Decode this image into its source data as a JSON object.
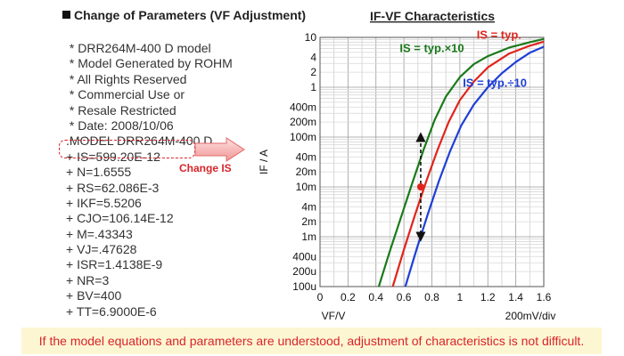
{
  "heading": "Change of Parameters (VF Adjustment)",
  "model_lines": [
    " * DRR264M-400 D model",
    " * Model Generated by ROHM",
    " * All Rights Reserved",
    " * Commercial Use or",
    " * Resale Restricted",
    " * Date: 2008/10/06",
    ".MODEL DRR264M-400 D",
    "+ IS=599.20E-12",
    "+ N=1.6555",
    "+ RS=62.086E-3",
    "+ IKF=5.5206",
    "+ CJO=106.14E-12",
    "+ M=.43343",
    "+ VJ=.47628",
    "+ ISR=1.4138E-9",
    "+ NR=3",
    "+ BV=400",
    "+ TT=6.9000E-6"
  ],
  "change_label": "Change IS",
  "footer_text": "If the model equations and parameters are understood, adjustment of characteristics is not difficult.",
  "colors": {
    "accent_red": "#d9242b",
    "series_green": "#1a7a1a",
    "series_red": "#e0241c",
    "series_blue": "#1f3fd6",
    "footer_bg": "#fdf6d2"
  },
  "chart_data": {
    "type": "line",
    "title": "IF-VF Characteristics",
    "xlabel": "VF/V",
    "ylabel": "IF / A",
    "x_scale_note": "200mV/div",
    "y_scale": "log",
    "xlim": [
      0,
      1.6
    ],
    "ylim": [
      0.0001,
      10
    ],
    "x_ticks": [
      "0",
      "0.2",
      "0.4",
      "0.6",
      "0.8",
      "1",
      "1.2",
      "1.4",
      "1.6"
    ],
    "y_ticks": [
      {
        "value": 10,
        "label": "10"
      },
      {
        "value": 4,
        "label": "4"
      },
      {
        "value": 2,
        "label": "2"
      },
      {
        "value": 1,
        "label": "1"
      },
      {
        "value": 0.4,
        "label": "400m"
      },
      {
        "value": 0.2,
        "label": "200m"
      },
      {
        "value": 0.1,
        "label": "100m"
      },
      {
        "value": 0.04,
        "label": "40m"
      },
      {
        "value": 0.02,
        "label": "20m"
      },
      {
        "value": 0.01,
        "label": "10m"
      },
      {
        "value": 0.004,
        "label": "4m"
      },
      {
        "value": 0.002,
        "label": "2m"
      },
      {
        "value": 0.001,
        "label": "1m"
      },
      {
        "value": 0.0004,
        "label": "400u"
      },
      {
        "value": 0.0002,
        "label": "200u"
      },
      {
        "value": 0.0001,
        "label": "100u"
      }
    ],
    "grid": true,
    "series": [
      {
        "name": "IS = typ.×10",
        "color": "#1a7a1a",
        "x": [
          0.42,
          0.5,
          0.58,
          0.66,
          0.74,
          0.82,
          0.9,
          1.0,
          1.1,
          1.2,
          1.35,
          1.5,
          1.6
        ],
        "y": [
          0.0001,
          0.00052,
          0.0025,
          0.012,
          0.055,
          0.22,
          0.65,
          1.6,
          2.9,
          4.2,
          6.2,
          8.0,
          9.3
        ]
      },
      {
        "name": "IS = typ.",
        "color": "#e0241c",
        "x": [
          0.52,
          0.6,
          0.68,
          0.76,
          0.84,
          0.92,
          1.0,
          1.1,
          1.2,
          1.35,
          1.5,
          1.6
        ],
        "y": [
          0.0001,
          0.00055,
          0.0028,
          0.013,
          0.055,
          0.2,
          0.55,
          1.3,
          2.5,
          4.7,
          6.8,
          8.2
        ]
      },
      {
        "name": "IS = typ.÷10",
        "color": "#1f3fd6",
        "x": [
          0.61,
          0.69,
          0.77,
          0.85,
          0.93,
          1.01,
          1.1,
          1.2,
          1.3,
          1.4,
          1.5,
          1.6
        ],
        "y": [
          0.0001,
          0.00055,
          0.0028,
          0.013,
          0.052,
          0.17,
          0.45,
          1.0,
          1.9,
          3.2,
          4.9,
          6.5
        ]
      }
    ],
    "annotations": [
      {
        "text": "IS = typ.×10",
        "color": "#1a7a1a",
        "x": 0.8,
        "y": 6
      },
      {
        "text": "IS = typ.",
        "color": "#e0241c",
        "x": 1.28,
        "y": 11
      },
      {
        "text": "IS = typ.÷10",
        "color": "#1f3fd6",
        "x": 1.25,
        "y": 1.2
      }
    ],
    "marker": {
      "x": 0.72,
      "y": 0.01
    },
    "shift_arrow": {
      "x": 0.72,
      "y_from": 0.1,
      "y_to": 0.001
    }
  }
}
